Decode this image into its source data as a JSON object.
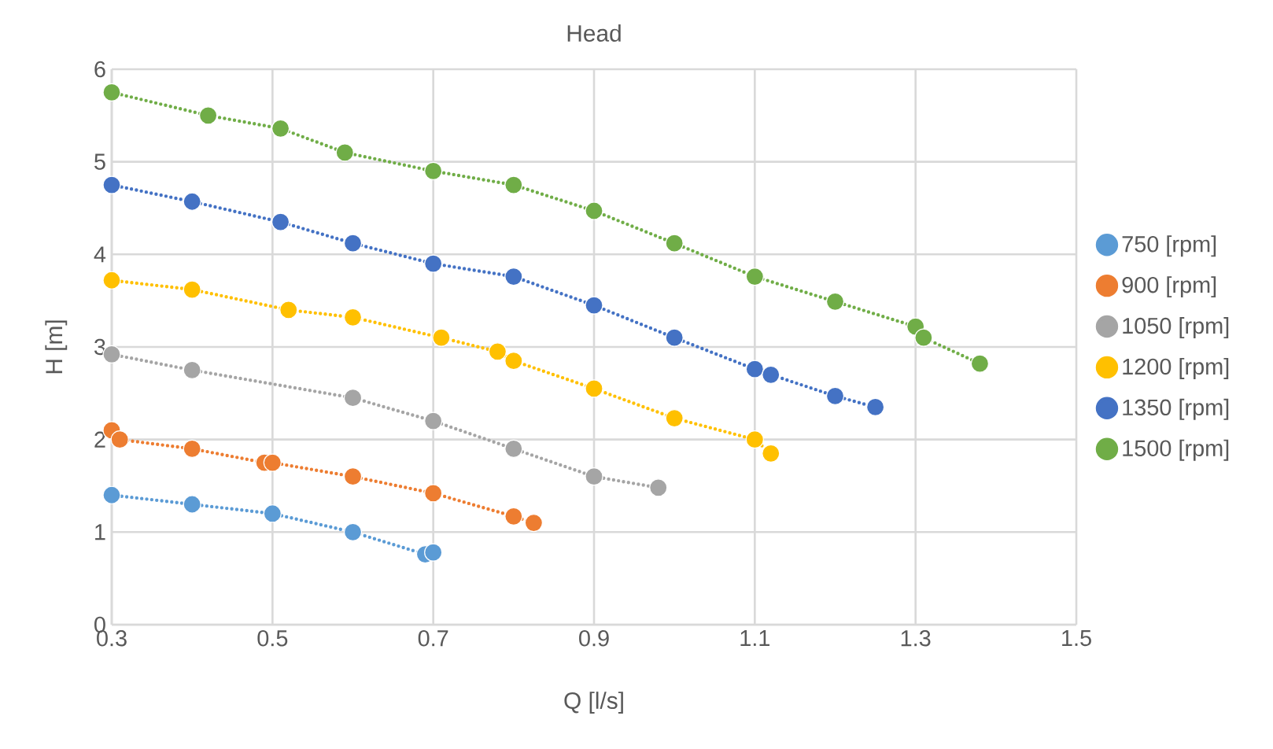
{
  "chart_data": {
    "type": "line",
    "title": "Head",
    "xlabel": "Q [l/s]",
    "ylabel": "H [m]",
    "xlim": [
      0.3,
      1.5
    ],
    "xticks": [
      0.3,
      0.5,
      0.7,
      0.9,
      1.1,
      1.3,
      1.5
    ],
    "ylim": [
      0,
      6
    ],
    "yticks": [
      0,
      1,
      2,
      3,
      4,
      5,
      6
    ],
    "grid": true,
    "legend": "right",
    "marker": "circle",
    "line_style": "dotted",
    "series": [
      {
        "name": "750 [rpm]",
        "color": "#5b9bd5",
        "x": [
          0.3,
          0.4,
          0.5,
          0.6,
          0.69,
          0.7
        ],
        "values": [
          1.4,
          1.3,
          1.2,
          1.0,
          0.76,
          0.78
        ]
      },
      {
        "name": "900 [rpm]",
        "color": "#ed7d31",
        "x": [
          0.3,
          0.31,
          0.4,
          0.49,
          0.5,
          0.6,
          0.7,
          0.8,
          0.825
        ],
        "values": [
          2.1,
          2.0,
          1.9,
          1.75,
          1.75,
          1.6,
          1.42,
          1.17,
          1.1
        ]
      },
      {
        "name": "1050 [rpm]",
        "color": "#a5a5a5",
        "x": [
          0.3,
          0.4,
          0.6,
          0.7,
          0.8,
          0.9,
          0.98
        ],
        "values": [
          2.92,
          2.75,
          2.45,
          2.2,
          1.9,
          1.6,
          1.48
        ]
      },
      {
        "name": "1200 [rpm]",
        "color": "#ffc000",
        "x": [
          0.3,
          0.4,
          0.52,
          0.6,
          0.71,
          0.78,
          0.8,
          0.9,
          1.0,
          1.1,
          1.12
        ],
        "values": [
          3.72,
          3.62,
          3.4,
          3.32,
          3.1,
          2.95,
          2.85,
          2.55,
          2.23,
          2.0,
          1.85
        ]
      },
      {
        "name": "1350 [rpm]",
        "color": "#4472c4",
        "x": [
          0.3,
          0.4,
          0.51,
          0.6,
          0.7,
          0.8,
          0.9,
          1.0,
          1.1,
          1.12,
          1.2,
          1.25
        ],
        "values": [
          4.75,
          4.57,
          4.35,
          4.12,
          3.9,
          3.76,
          3.45,
          3.1,
          2.76,
          2.7,
          2.47,
          2.35
        ]
      },
      {
        "name": "1500 [rpm]",
        "color": "#70ad47",
        "x": [
          0.3,
          0.42,
          0.51,
          0.59,
          0.7,
          0.8,
          0.9,
          1.0,
          1.1,
          1.2,
          1.3,
          1.31,
          1.38
        ],
        "values": [
          5.75,
          5.5,
          5.36,
          5.1,
          4.9,
          4.75,
          4.47,
          4.12,
          3.76,
          3.49,
          3.22,
          3.1,
          2.82
        ]
      }
    ]
  }
}
